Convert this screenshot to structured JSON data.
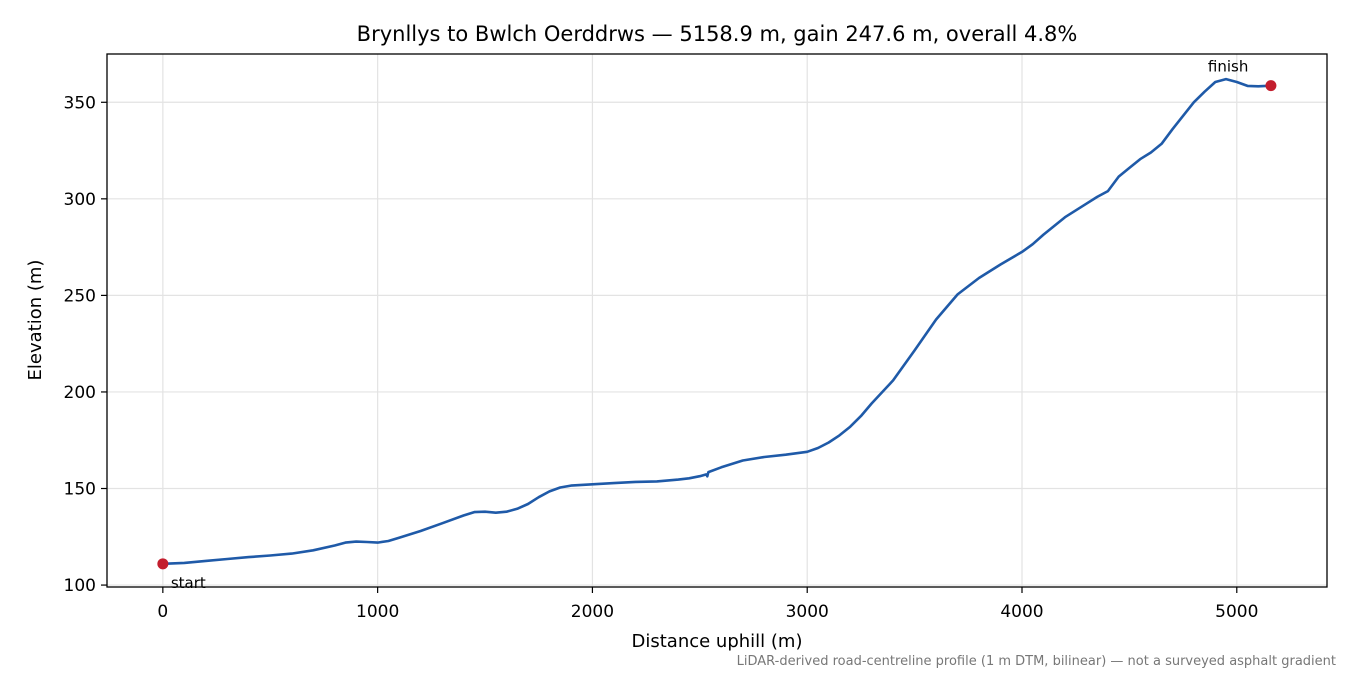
{
  "chart_data": {
    "type": "line",
    "title": "Brynllys to Bwlch Oerddrws — 5158.9 m, gain 247.6 m, overall 4.8%",
    "xlabel": "Distance uphill (m)",
    "ylabel": "Elevation (m)",
    "xlim": [
      -260,
      5420
    ],
    "ylim": [
      99,
      375
    ],
    "xticks": [
      0,
      1000,
      2000,
      3000,
      4000,
      5000
    ],
    "yticks": [
      100,
      150,
      200,
      250,
      300,
      350
    ],
    "grid": true,
    "footnote": "LiDAR-derived road-centreline profile (1 m DTM, bilinear) — not a surveyed asphalt gradient",
    "series": [
      {
        "color": "#1f5aa8",
        "x": [
          0,
          100,
          200,
          300,
          400,
          500,
          600,
          700,
          800,
          850,
          900,
          950,
          1000,
          1050,
          1100,
          1200,
          1300,
          1400,
          1450,
          1500,
          1550,
          1600,
          1650,
          1700,
          1750,
          1800,
          1850,
          1900,
          2000,
          2100,
          2200,
          2300,
          2400,
          2450,
          2500,
          2530,
          2535,
          2540,
          2600,
          2700,
          2800,
          2900,
          3000,
          3050,
          3100,
          3150,
          3200,
          3250,
          3300,
          3400,
          3500,
          3600,
          3700,
          3800,
          3900,
          4000,
          4050,
          4100,
          4200,
          4300,
          4350,
          4400,
          4450,
          4500,
          4550,
          4600,
          4650,
          4700,
          4800,
          4850,
          4900,
          4950,
          5000,
          5050,
          5100,
          5158.9
        ],
        "y": [
          111,
          111.5,
          112.5,
          113.5,
          114.5,
          115.3,
          116.3,
          118,
          120.5,
          122,
          122.5,
          122.3,
          122,
          122.8,
          124.5,
          128,
          132,
          136,
          137.8,
          138,
          137.5,
          138,
          139.5,
          142,
          145.5,
          148.5,
          150.5,
          151.5,
          152.2,
          152.8,
          153.4,
          153.7,
          154.6,
          155.3,
          156.4,
          157.3,
          156.3,
          158.5,
          161,
          164.5,
          166.3,
          167.5,
          169,
          171,
          173.8,
          177.5,
          182,
          187.5,
          194,
          206,
          221.5,
          237.5,
          250.5,
          259,
          266,
          272.5,
          276.5,
          281.5,
          290.5,
          297.5,
          301,
          304,
          311.5,
          316,
          320.5,
          324,
          328.5,
          336,
          350,
          355.5,
          360.5,
          362,
          360.5,
          358.5,
          358.3,
          358.6
        ]
      }
    ],
    "markers": [
      {
        "x": 0,
        "y": 111,
        "label": "start",
        "color": "#c31e2e"
      },
      {
        "x": 5158.9,
        "y": 358.6,
        "label": "finish",
        "color": "#c31e2e"
      }
    ]
  }
}
